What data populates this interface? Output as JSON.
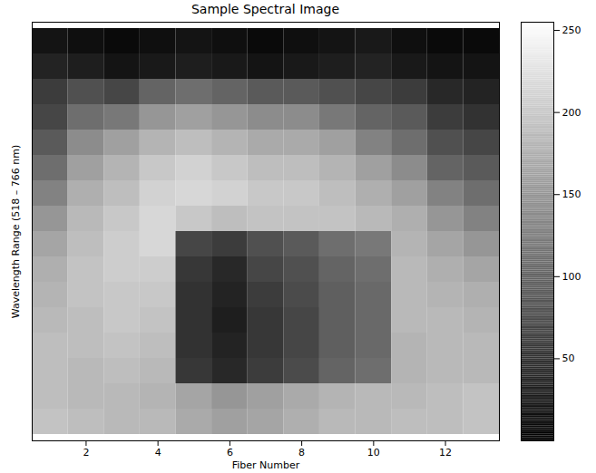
{
  "chart_data": {
    "type": "heatmap",
    "title": "Sample Spectral Image",
    "x_label": "Fiber Number",
    "y_label": "Wavelength Range (518 – 766 nm)",
    "x": [
      1,
      2,
      3,
      4,
      5,
      6,
      7,
      8,
      9,
      10,
      11,
      12,
      13
    ],
    "xlim": [
      0.5,
      13.5
    ],
    "xticks": [
      2,
      4,
      6,
      8,
      10,
      12
    ],
    "tick_labels": "x",
    "cells": [
      [
        20,
        15,
        10,
        15,
        20,
        15,
        10,
        15,
        20,
        25,
        15,
        10,
        10
      ],
      [
        35,
        30,
        20,
        25,
        30,
        25,
        20,
        25,
        30,
        35,
        25,
        20,
        20
      ],
      [
        60,
        80,
        70,
        100,
        110,
        100,
        90,
        90,
        80,
        70,
        60,
        40,
        35
      ],
      [
        70,
        110,
        120,
        150,
        160,
        150,
        140,
        140,
        120,
        100,
        90,
        60,
        50
      ],
      [
        90,
        140,
        160,
        180,
        190,
        180,
        170,
        170,
        160,
        130,
        110,
        80,
        70
      ],
      [
        110,
        160,
        180,
        200,
        210,
        200,
        190,
        190,
        180,
        160,
        140,
        100,
        90
      ],
      [
        130,
        175,
        190,
        210,
        215,
        210,
        200,
        200,
        190,
        175,
        160,
        130,
        110
      ],
      [
        150,
        185,
        200,
        215,
        200,
        190,
        195,
        195,
        195,
        185,
        175,
        150,
        130
      ],
      [
        165,
        190,
        205,
        215,
        70,
        60,
        80,
        90,
        110,
        120,
        180,
        165,
        150
      ],
      [
        175,
        195,
        205,
        205,
        55,
        40,
        70,
        80,
        100,
        110,
        185,
        175,
        165
      ],
      [
        180,
        195,
        200,
        200,
        50,
        35,
        60,
        75,
        95,
        105,
        185,
        180,
        175
      ],
      [
        185,
        190,
        200,
        195,
        50,
        30,
        55,
        70,
        95,
        105,
        185,
        185,
        180
      ],
      [
        190,
        190,
        195,
        190,
        50,
        35,
        55,
        70,
        95,
        105,
        180,
        185,
        185
      ],
      [
        190,
        185,
        190,
        185,
        55,
        40,
        60,
        75,
        100,
        110,
        180,
        185,
        185
      ],
      [
        190,
        185,
        185,
        180,
        165,
        150,
        160,
        170,
        180,
        185,
        185,
        190,
        195
      ],
      [
        195,
        190,
        185,
        185,
        170,
        160,
        165,
        175,
        185,
        185,
        190,
        190,
        195
      ]
    ],
    "colorbar_range": [
      0,
      255
    ],
    "colorbar_ticks": [
      50,
      100,
      150,
      200,
      250
    ]
  }
}
